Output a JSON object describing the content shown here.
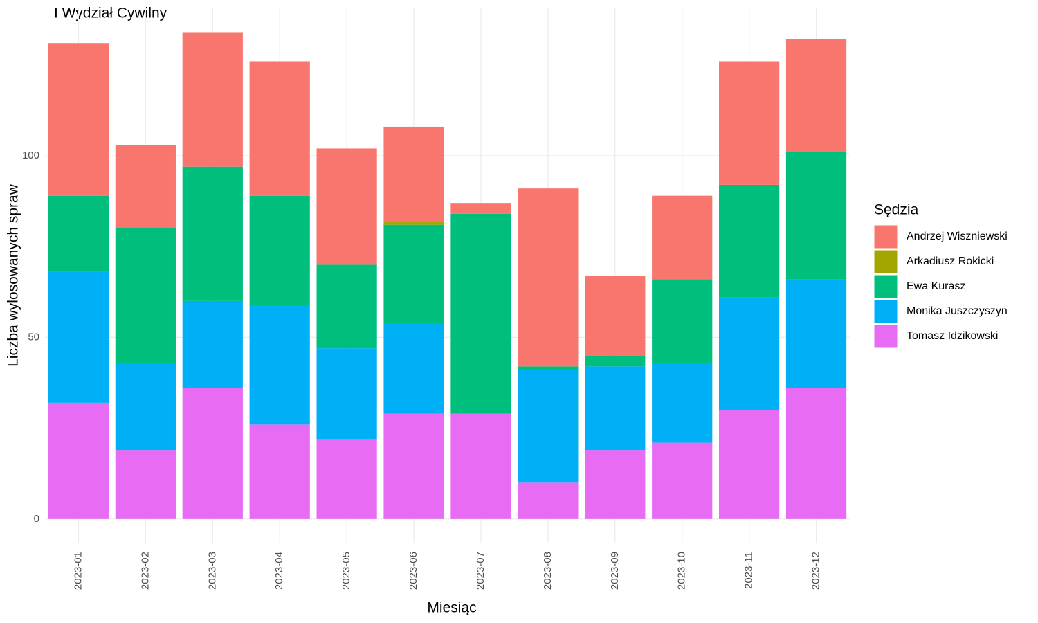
{
  "chart_data": {
    "type": "stacked_bar",
    "title": "I Wydział Cywilny",
    "x_label": "Miesiąc",
    "y_label": "Liczba wylosowanych spraw",
    "legend_title": "Sędzia",
    "categories": [
      "2023-01",
      "2023-02",
      "2023-03",
      "2023-04",
      "2023-05",
      "2023-06",
      "2023-07",
      "2023-08",
      "2023-09",
      "2023-10",
      "2023-11",
      "2023-12"
    ],
    "series": [
      {
        "name": "Andrzej Wiszniewski",
        "color": "#F8766D",
        "values": [
          42,
          23,
          37,
          37,
          32,
          26,
          3,
          49,
          22,
          23,
          34,
          31
        ]
      },
      {
        "name": "Arkadiusz Rokicki",
        "color": "#A3A500",
        "values": [
          0,
          0,
          0,
          0,
          0,
          1,
          0,
          0,
          0,
          0,
          0,
          0
        ]
      },
      {
        "name": "Ewa Kurasz",
        "color": "#00BF7D",
        "values": [
          21,
          37,
          37,
          30,
          23,
          27,
          55,
          1,
          3,
          23,
          31,
          35
        ]
      },
      {
        "name": "Monika Juszczyszyn",
        "color": "#00B0F6",
        "values": [
          36,
          24,
          24,
          33,
          25,
          25,
          0,
          31,
          23,
          22,
          31,
          30
        ]
      },
      {
        "name": "Tomasz Idzikowski",
        "color": "#E76BF3",
        "values": [
          32,
          19,
          36,
          26,
          22,
          29,
          29,
          10,
          19,
          21,
          30,
          36
        ]
      }
    ],
    "ylim": [
      -6.7,
      140.7
    ],
    "yticks": [
      0,
      50,
      100
    ],
    "grid": true,
    "legend_position": "right"
  }
}
